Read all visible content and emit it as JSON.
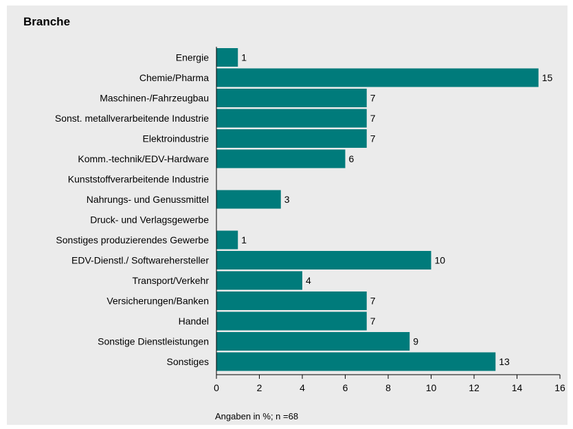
{
  "chart_data": {
    "type": "bar",
    "orientation": "horizontal",
    "title": "Branche",
    "note": "Angaben in %; n =68",
    "categories": [
      "Energie",
      "Chemie/Pharma",
      "Maschinen-/Fahrzeugbau",
      "Sonst. metallverarbeitende Industrie",
      "Elektroindustrie",
      "Komm.-technik/EDV-Hardware",
      "Kunststoffverarbeitende Industrie",
      "Nahrungs- und Genussmittel",
      "Druck- und Verlagsgewerbe",
      "Sonstiges produzierendes Gewerbe",
      "EDV-Dienstl./ Softwarehersteller",
      "Transport/Verkehr",
      "Versicherungen/Banken",
      "Handel",
      "Sonstige Dienstleistungen",
      "Sonstiges"
    ],
    "values": [
      1,
      15,
      7,
      7,
      7,
      6,
      null,
      3,
      null,
      1,
      10,
      4,
      7,
      7,
      9,
      13
    ],
    "xlim": [
      0,
      16
    ],
    "xticks": [
      0,
      2,
      4,
      6,
      8,
      10,
      12,
      14,
      16
    ],
    "bar_color": "#007b7b",
    "background_color": "#ebebeb",
    "grid": false,
    "legend": "none"
  }
}
